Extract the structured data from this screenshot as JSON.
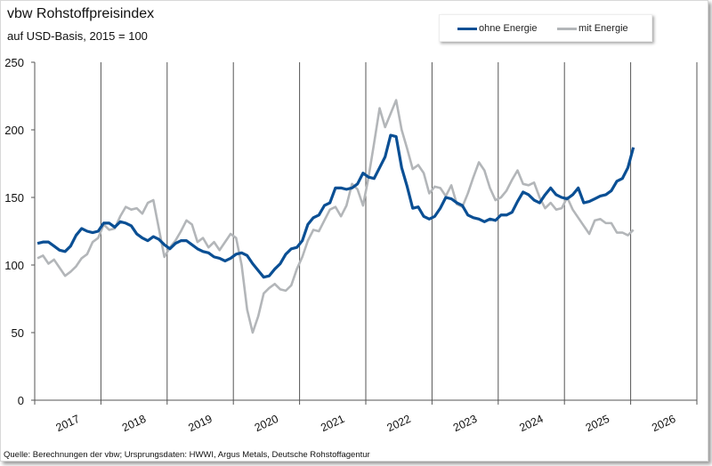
{
  "header": {
    "title": "vbw Rohstoffpreisindex",
    "subtitle": "auf USD-Basis, 2015 = 100"
  },
  "footer": {
    "source": "Quelle: Berechnungen der vbw; Ursprungsdaten: HWWI, Argus Metals, Deutsche Rohstoffagentur"
  },
  "chart_data": {
    "type": "line",
    "title": "vbw Rohstoffpreisindex",
    "subtitle": "auf USD-Basis, 2015 = 100",
    "x_frequency": "monthly",
    "x_start": "2017-01",
    "x_end": "2026-01",
    "xlim": [
      "2017-01",
      "2027-01"
    ],
    "x_tick_labels": [
      "2017",
      "2018",
      "2019",
      "2020",
      "2021",
      "2022",
      "2023",
      "2024",
      "2025",
      "2026"
    ],
    "ylim": [
      0,
      250
    ],
    "y_ticks": [
      0,
      50,
      100,
      150,
      200,
      250
    ],
    "grid": "vertical year lines",
    "legend": "top-right",
    "series": [
      {
        "name": "ohne Energie",
        "color": "#0a4f94",
        "values": [
          116,
          117,
          117,
          114,
          111,
          110,
          114,
          122,
          127,
          125,
          124,
          125,
          131,
          131,
          128,
          132,
          131,
          129,
          123,
          120,
          118,
          121,
          119,
          115,
          112,
          116,
          118,
          118,
          115,
          112,
          110,
          109,
          106,
          105,
          103,
          105,
          108,
          109,
          107,
          101,
          96,
          91,
          92,
          97,
          101,
          108,
          112,
          113,
          118,
          130,
          135,
          137,
          144,
          146,
          157,
          157,
          156,
          157,
          160,
          168,
          165,
          164,
          172,
          180,
          196,
          195,
          172,
          158,
          142,
          143,
          136,
          134,
          136,
          142,
          150,
          149,
          146,
          144,
          137,
          135,
          134,
          132,
          134,
          133,
          137,
          137,
          139,
          147,
          154,
          152,
          148,
          146,
          152,
          157,
          152,
          150,
          149,
          152,
          157,
          146,
          147,
          149,
          151,
          152,
          155,
          162,
          164,
          172,
          187
        ]
      },
      {
        "name": "mit Energie",
        "color": "#b3b6b9",
        "values": [
          105,
          107,
          101,
          104,
          98,
          92,
          95,
          99,
          105,
          108,
          117,
          120,
          130,
          126,
          127,
          136,
          143,
          141,
          142,
          138,
          146,
          148,
          127,
          106,
          113,
          118,
          125,
          133,
          130,
          117,
          120,
          113,
          117,
          111,
          117,
          123,
          120,
          100,
          67,
          50,
          62,
          79,
          83,
          86,
          82,
          81,
          85,
          97,
          106,
          118,
          126,
          125,
          133,
          141,
          143,
          136,
          144,
          160,
          156,
          144,
          165,
          190,
          216,
          202,
          212,
          222,
          200,
          186,
          171,
          174,
          168,
          153,
          158,
          157,
          151,
          159,
          145,
          143,
          153,
          165,
          176,
          170,
          157,
          148,
          150,
          155,
          163,
          170,
          160,
          159,
          161,
          150,
          142,
          146,
          141,
          142,
          150,
          141,
          135,
          129,
          123,
          133,
          134,
          131,
          131,
          124,
          124,
          122,
          126
        ]
      }
    ]
  }
}
